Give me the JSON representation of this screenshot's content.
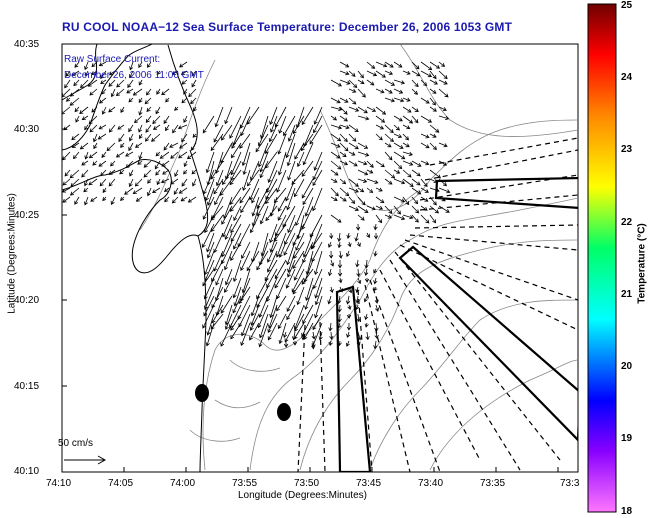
{
  "title": "RU COOL  NOAA−12  Sea Surface Temperature:  December 26, 2006 1053 GMT",
  "subtitle_line1": "Raw Surface Current:",
  "subtitle_line2": "December 26, 2006 11:00 GMT",
  "axes": {
    "ylabel": "Latitude (Degrees:Minutes)",
    "xlabel": "Longitude (Degrees:Minutes)",
    "lat_ticks": [
      "40:35",
      "40:30",
      "40:25",
      "40:20",
      "40:15",
      "40:10"
    ],
    "lon_ticks": [
      "74:10",
      "74:05",
      "74:00",
      "73:55",
      "73:50",
      "73:45",
      "73:40",
      "73:35",
      "73:3"
    ]
  },
  "colorbar": {
    "label": "Temperature (°C)",
    "ticks": [
      "25",
      "24",
      "23",
      "22",
      "21",
      "20",
      "19",
      "18"
    ],
    "range": [
      18,
      25
    ],
    "colors": [
      "#ff77ff",
      "#0000ff",
      "#00ffff",
      "#00ff00",
      "#ffff00",
      "#ff8800",
      "#ff0000",
      "#700000"
    ]
  },
  "scale_arrow_label": "50 cm/s",
  "colors": {
    "title": "#1a1ab0",
    "coast": "#000000",
    "contour": "#888888"
  }
}
